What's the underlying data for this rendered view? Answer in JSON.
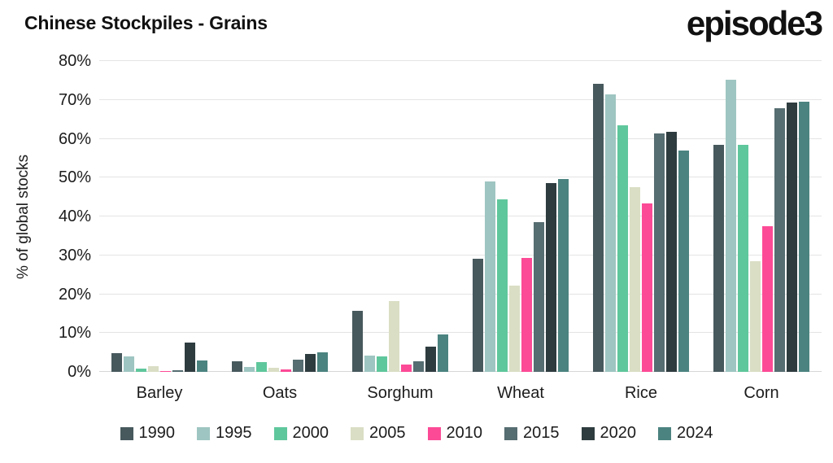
{
  "header": {
    "title": "Chinese Stockpiles - Grains",
    "logo": "episode3"
  },
  "chart_data": {
    "type": "bar",
    "title": "Chinese Stockpiles - Grains",
    "xlabel": "",
    "ylabel": "% of global stocks",
    "ylim": [
      0,
      80
    ],
    "ytick_labels": [
      "0%",
      "10%",
      "20%",
      "30%",
      "40%",
      "50%",
      "60%",
      "70%",
      "80%"
    ],
    "grid": "horizontal",
    "legend_position": "bottom",
    "categories": [
      "Barley",
      "Oats",
      "Sorghum",
      "Wheat",
      "Rice",
      "Corn"
    ],
    "series": [
      {
        "name": "1990",
        "color": "#47595d",
        "values": [
          4.8,
          2.8,
          15.8,
          29.2,
          74.2,
          58.5
        ]
      },
      {
        "name": "1995",
        "color": "#9ec5c1",
        "values": [
          4.0,
          1.2,
          4.2,
          49.0,
          71.5,
          75.2
        ]
      },
      {
        "name": "2000",
        "color": "#5fc79c",
        "values": [
          0.8,
          2.6,
          4.0,
          44.5,
          63.4,
          58.5
        ]
      },
      {
        "name": "2005",
        "color": "#dadec4",
        "values": [
          1.5,
          1.0,
          18.3,
          22.2,
          47.6,
          28.5
        ]
      },
      {
        "name": "2010",
        "color": "#fc4a96",
        "values": [
          0.3,
          0.6,
          1.8,
          29.4,
          43.3,
          37.5
        ]
      },
      {
        "name": "2015",
        "color": "#566d71",
        "values": [
          0.5,
          3.2,
          2.8,
          38.5,
          61.3,
          67.8
        ]
      },
      {
        "name": "2020",
        "color": "#2e3c3f",
        "values": [
          7.5,
          4.7,
          6.5,
          48.6,
          61.7,
          69.3
        ]
      },
      {
        "name": "2024",
        "color": "#4b8380",
        "values": [
          3.0,
          5.1,
          9.6,
          49.7,
          57.0,
          69.6
        ]
      }
    ]
  }
}
